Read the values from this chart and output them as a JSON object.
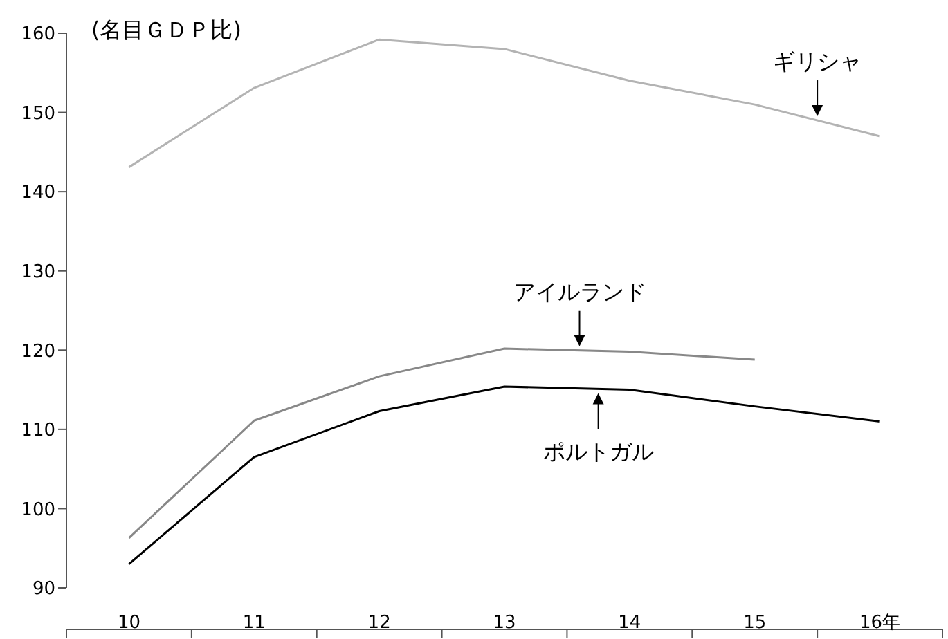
{
  "chart_data": {
    "type": "line",
    "ylabel": "(名目ＧＤＰ比)",
    "categories": [
      "10",
      "11",
      "12",
      "13",
      "14",
      "15",
      "16年"
    ],
    "ylim": [
      90,
      160
    ],
    "yticks": [
      90,
      100,
      110,
      120,
      130,
      140,
      150,
      160
    ],
    "series": [
      {
        "name": "ギリシャ",
        "color": "#b3b3b3",
        "values": [
          143.1,
          153.1,
          159.2,
          158,
          154,
          151,
          147
        ]
      },
      {
        "name": "アイルランド",
        "color": "#888888",
        "values": [
          96.3,
          111.1,
          116.7,
          120.2,
          119.8,
          118.8,
          null
        ]
      },
      {
        "name": "ポルトガル",
        "color": "#000000",
        "values": [
          93,
          106.5,
          112.3,
          115.4,
          115,
          112.9,
          111
        ]
      }
    ]
  }
}
